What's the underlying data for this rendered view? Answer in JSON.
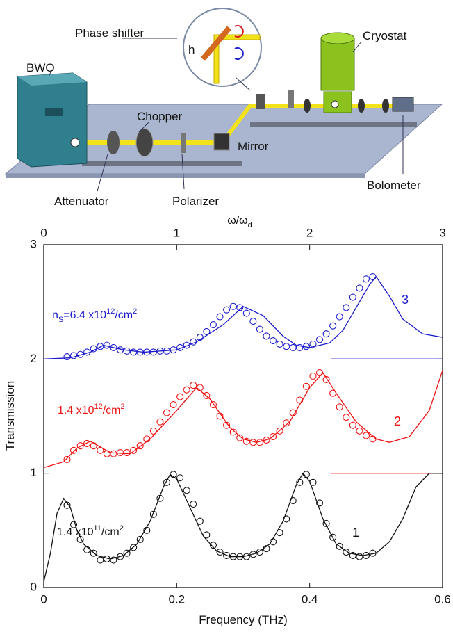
{
  "diagram": {
    "labels": {
      "phase_shifter": "Phase shifter",
      "h": "h",
      "cryostat": "Cryostat",
      "bwo": "BWO",
      "chopper": "Chopper",
      "mirror": "Mirror",
      "attenuator": "Attenuator",
      "polarizer": "Polarizer",
      "bolometer": "Bolometer"
    }
  },
  "chart_data": {
    "type": "line",
    "xlabel": "Frequency (THz)",
    "ylabel": "Transmission",
    "x2label": [
      {
        "text": "ω/ω"
      },
      {
        "text": "d",
        "sub": true
      }
    ],
    "xlim": [
      0,
      0.6
    ],
    "xticks": [
      0,
      0.2,
      0.4,
      0.6
    ],
    "x2lim": [
      0,
      3
    ],
    "x2ticks": [
      0,
      1,
      2,
      3
    ],
    "ylim": [
      0,
      3
    ],
    "yticks": [
      0,
      1,
      2,
      3
    ],
    "points_x": [
      0.035,
      0.045,
      0.055,
      0.065,
      0.075,
      0.085,
      0.095,
      0.105,
      0.115,
      0.125,
      0.135,
      0.145,
      0.155,
      0.165,
      0.175,
      0.185,
      0.195,
      0.205,
      0.215,
      0.225,
      0.235,
      0.245,
      0.255,
      0.265,
      0.275,
      0.285,
      0.295,
      0.305,
      0.315,
      0.325,
      0.335,
      0.345,
      0.355,
      0.365,
      0.375,
      0.385,
      0.395,
      0.405,
      0.415,
      0.425,
      0.435,
      0.445,
      0.455,
      0.465,
      0.475,
      0.485,
      0.495
    ],
    "series": [
      {
        "label": "3",
        "color": "#1a1acc",
        "annotation": [
          {
            "text": "n"
          },
          {
            "text": "S",
            "sub": true
          },
          {
            "text": "=6.4 x10"
          },
          {
            "text": "12",
            "sup": true
          },
          {
            "text": "/cm"
          },
          {
            "text": "2",
            "sup": true
          }
        ],
        "fit_x": [
          0,
          0.04,
          0.07,
          0.09,
          0.12,
          0.15,
          0.2,
          0.23,
          0.27,
          0.3,
          0.33,
          0.36,
          0.38,
          0.4,
          0.43,
          0.45,
          0.47,
          0.49,
          0.5,
          0.52,
          0.54,
          0.57,
          0.6
        ],
        "fit_y": [
          2.0,
          2.01,
          2.06,
          2.12,
          2.08,
          2.06,
          2.08,
          2.15,
          2.3,
          2.46,
          2.38,
          2.2,
          2.12,
          2.1,
          2.14,
          2.25,
          2.45,
          2.65,
          2.72,
          2.55,
          2.35,
          2.22,
          2.19
        ],
        "points_y": [
          2.02,
          2.03,
          2.04,
          2.06,
          2.09,
          2.11,
          2.12,
          2.1,
          2.08,
          2.07,
          2.06,
          2.06,
          2.06,
          2.06,
          2.07,
          2.07,
          2.08,
          2.1,
          2.12,
          2.15,
          2.19,
          2.24,
          2.3,
          2.37,
          2.43,
          2.46,
          2.45,
          2.4,
          2.33,
          2.26,
          2.2,
          2.16,
          2.13,
          2.11,
          2.1,
          2.1,
          2.11,
          2.13,
          2.17,
          2.22,
          2.29,
          2.37,
          2.45,
          2.54,
          2.62,
          2.7,
          2.72
        ]
      },
      {
        "label": "2",
        "color": "#ee1111",
        "annotation": [
          {
            "text": "1.4 x10"
          },
          {
            "text": "12",
            "sup": true
          },
          {
            "text": "/cm"
          },
          {
            "text": "2",
            "sup": true
          }
        ],
        "fit_x": [
          0,
          0.03,
          0.05,
          0.07,
          0.1,
          0.13,
          0.16,
          0.2,
          0.23,
          0.25,
          0.28,
          0.3,
          0.32,
          0.34,
          0.37,
          0.4,
          0.42,
          0.44,
          0.47,
          0.5,
          0.52,
          0.55,
          0.58,
          0.6
        ],
        "fit_y": [
          1.05,
          1.1,
          1.22,
          1.28,
          1.18,
          1.17,
          1.3,
          1.55,
          1.75,
          1.65,
          1.4,
          1.3,
          1.27,
          1.3,
          1.45,
          1.75,
          1.88,
          1.7,
          1.45,
          1.3,
          1.27,
          1.32,
          1.55,
          1.9
        ],
        "points_y": [
          1.12,
          1.2,
          1.24,
          1.26,
          1.24,
          1.2,
          1.17,
          1.17,
          1.18,
          1.18,
          1.2,
          1.24,
          1.3,
          1.37,
          1.45,
          1.53,
          1.6,
          1.67,
          1.73,
          1.77,
          1.75,
          1.68,
          1.6,
          1.5,
          1.42,
          1.36,
          1.31,
          1.28,
          1.27,
          1.27,
          1.29,
          1.32,
          1.37,
          1.44,
          1.53,
          1.64,
          1.76,
          1.85,
          1.88,
          1.82,
          1.7,
          1.58,
          1.49,
          1.42,
          1.37,
          1.33,
          1.3
        ]
      },
      {
        "label": "1",
        "color": "#111111",
        "annotation": [
          {
            "text": "1.4 x10"
          },
          {
            "text": "11",
            "sup": true
          },
          {
            "text": "/cm"
          },
          {
            "text": "2",
            "sup": true
          }
        ],
        "fit_x": [
          0,
          0.01,
          0.02,
          0.03,
          0.04,
          0.05,
          0.06,
          0.08,
          0.1,
          0.12,
          0.14,
          0.16,
          0.18,
          0.19,
          0.2,
          0.22,
          0.24,
          0.26,
          0.28,
          0.3,
          0.32,
          0.34,
          0.36,
          0.38,
          0.39,
          0.4,
          0.42,
          0.44,
          0.46,
          0.48,
          0.5,
          0.52,
          0.54,
          0.56,
          0.58,
          0.6
        ],
        "fit_y": [
          0.05,
          0.3,
          0.65,
          0.78,
          0.7,
          0.5,
          0.38,
          0.28,
          0.25,
          0.28,
          0.38,
          0.58,
          0.88,
          0.99,
          0.95,
          0.7,
          0.45,
          0.32,
          0.27,
          0.27,
          0.3,
          0.38,
          0.58,
          0.9,
          1.0,
          0.93,
          0.6,
          0.38,
          0.3,
          0.28,
          0.3,
          0.4,
          0.6,
          0.88,
          1.0,
          1.0
        ],
        "points_y": [
          0.72,
          0.55,
          0.42,
          0.33,
          0.3,
          0.24,
          0.25,
          0.24,
          0.27,
          0.3,
          0.35,
          0.42,
          0.5,
          0.64,
          0.78,
          0.92,
          0.99,
          0.96,
          0.85,
          0.73,
          0.58,
          0.46,
          0.37,
          0.31,
          0.28,
          0.27,
          0.27,
          0.27,
          0.29,
          0.31,
          0.34,
          0.4,
          0.48,
          0.6,
          0.76,
          0.92,
          0.99,
          0.92,
          0.74,
          0.56,
          0.44,
          0.36,
          0.31,
          0.28,
          0.27,
          0.28,
          0.3
        ]
      }
    ],
    "reference_lines": [
      {
        "x": [
          0.432,
          0.6
        ],
        "y": 2,
        "color": "#1a1acc"
      },
      {
        "x": [
          0.432,
          0.6
        ],
        "y": 1,
        "color": "#ee1111"
      }
    ]
  }
}
